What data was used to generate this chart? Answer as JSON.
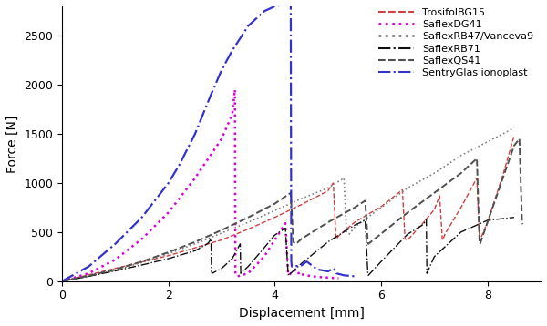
{
  "title": "",
  "xlabel": "Displacement [mm]",
  "ylabel": "Force [N]",
  "xlim": [
    0,
    9
  ],
  "ylim": [
    0,
    2800
  ],
  "xticks": [
    0,
    2,
    4,
    6,
    8
  ],
  "yticks": [
    0,
    500,
    1000,
    1500,
    2000,
    2500
  ],
  "figsize": [
    6.0,
    3.58
  ],
  "dpi": 100,
  "series": {
    "TrosifolBG15": {
      "color": "#d04040",
      "linestyle": "--",
      "linewidth": 1.0,
      "x": [
        0,
        1.0,
        2.0,
        3.0,
        3.5,
        4.0,
        4.5,
        5.0,
        5.1,
        5.15,
        5.16,
        5.2,
        5.5,
        6.0,
        6.4,
        6.45,
        6.5,
        6.8,
        7.0,
        7.1,
        7.15,
        7.16,
        7.2,
        7.5,
        7.8,
        7.85,
        7.86,
        8.0,
        8.3,
        8.5
      ],
      "y": [
        0,
        130,
        260,
        420,
        530,
        650,
        780,
        920,
        1000,
        450,
        430,
        460,
        600,
        760,
        930,
        430,
        420,
        600,
        730,
        870,
        430,
        420,
        480,
        750,
        1050,
        430,
        420,
        600,
        1100,
        1480
      ]
    },
    "SaflexDG41": {
      "color": "#dd00dd",
      "linestyle": ":",
      "linewidth": 1.8,
      "x": [
        0,
        0.5,
        1.0,
        1.5,
        2.0,
        2.5,
        3.0,
        3.2,
        3.25,
        3.26,
        3.3,
        3.5,
        3.8,
        4.0,
        4.2,
        4.25,
        4.26,
        4.3,
        4.4,
        4.45,
        4.46,
        4.5,
        4.7,
        4.9,
        5.2
      ],
      "y": [
        0,
        80,
        220,
        430,
        700,
        1050,
        1450,
        1700,
        1950,
        70,
        50,
        80,
        250,
        420,
        590,
        80,
        60,
        80,
        120,
        80,
        60,
        70,
        50,
        40,
        30
      ]
    },
    "SaflexRB47_Vanceva9": {
      "color": "#808080",
      "linestyle": ":",
      "linewidth": 1.2,
      "x": [
        0,
        0.5,
        1.0,
        1.5,
        2.0,
        2.5,
        3.0,
        3.5,
        4.0,
        4.5,
        5.0,
        5.3,
        5.35,
        5.4,
        5.5,
        6.0,
        6.5,
        7.0,
        7.5,
        8.0,
        8.5
      ],
      "y": [
        0,
        50,
        110,
        190,
        280,
        380,
        490,
        600,
        720,
        840,
        950,
        1050,
        500,
        480,
        550,
        750,
        950,
        1100,
        1280,
        1420,
        1560
      ]
    },
    "SaflexRB71": {
      "color": "#101010",
      "linestyle": "-.",
      "linewidth": 1.0,
      "x": [
        0,
        0.5,
        1.0,
        1.5,
        2.0,
        2.5,
        2.7,
        2.75,
        2.8,
        2.81,
        2.82,
        3.0,
        3.2,
        3.3,
        3.35,
        3.36,
        3.5,
        3.8,
        4.0,
        4.2,
        4.25,
        4.26,
        4.5,
        5.0,
        5.5,
        5.7,
        5.75,
        5.76,
        6.0,
        6.5,
        6.8,
        6.85,
        6.86,
        7.0,
        7.5,
        8.0,
        8.5
      ],
      "y": [
        0,
        50,
        105,
        165,
        230,
        310,
        370,
        390,
        430,
        100,
        80,
        130,
        230,
        330,
        380,
        80,
        150,
        340,
        470,
        540,
        80,
        60,
        180,
        400,
        570,
        620,
        80,
        60,
        200,
        480,
        580,
        630,
        80,
        250,
        500,
        620,
        650
      ]
    },
    "SaflexQS41": {
      "color": "#505050",
      "linestyle": "--",
      "linewidth": 1.4,
      "x": [
        0,
        0.5,
        1.0,
        1.5,
        2.0,
        2.5,
        3.0,
        3.5,
        4.0,
        4.3,
        4.35,
        4.4,
        4.5,
        5.0,
        5.5,
        5.7,
        5.75,
        5.76,
        6.5,
        7.0,
        7.5,
        7.8,
        7.85,
        7.86,
        8.0,
        8.5,
        8.6,
        8.65,
        8.66
      ],
      "y": [
        0,
        55,
        120,
        200,
        295,
        400,
        520,
        650,
        790,
        900,
        400,
        380,
        430,
        600,
        750,
        820,
        400,
        380,
        700,
        900,
        1100,
        1250,
        400,
        380,
        600,
        1380,
        1450,
        600,
        580
      ]
    },
    "SentryGlas_ionoplast": {
      "color": "#3333cc",
      "linestyle": "-.",
      "linewidth": 1.6,
      "x": [
        0,
        0.5,
        1.0,
        1.5,
        2.0,
        2.2,
        2.5,
        2.8,
        3.0,
        3.2,
        3.5,
        3.8,
        4.0,
        4.2,
        4.3,
        4.31,
        4.32,
        4.5,
        4.55,
        4.6,
        4.7,
        4.8,
        5.0,
        5.1,
        5.15,
        5.16,
        5.3,
        5.5
      ],
      "y": [
        0,
        150,
        380,
        650,
        1000,
        1180,
        1500,
        1900,
        2150,
        2350,
        2600,
        2750,
        2800,
        2820,
        2820,
        200,
        150,
        160,
        180,
        200,
        160,
        120,
        100,
        130,
        100,
        80,
        60,
        50
      ]
    }
  },
  "legend": {
    "TrosifolBG15": {
      "color": "#d04040",
      "linestyle": "--",
      "label": "TrosifolBG15"
    },
    "SaflexDG41": {
      "color": "#dd00dd",
      "linestyle": ":",
      "label": "SaflexDG41"
    },
    "SaflexRB47_Vanceva9": {
      "color": "#808080",
      "linestyle": ":",
      "label": "SaflexRB47/Vanceva9"
    },
    "SaflexRB71": {
      "color": "#101010",
      "linestyle": "-.",
      "label": "SaflexRB71"
    },
    "SaflexQS41": {
      "color": "#505050",
      "linestyle": "--",
      "label": "SaflexQS41"
    },
    "SentryGlas_ionoplast": {
      "color": "#3333cc",
      "linestyle": "-.",
      "label": "SentryGlas ionoplast"
    }
  }
}
